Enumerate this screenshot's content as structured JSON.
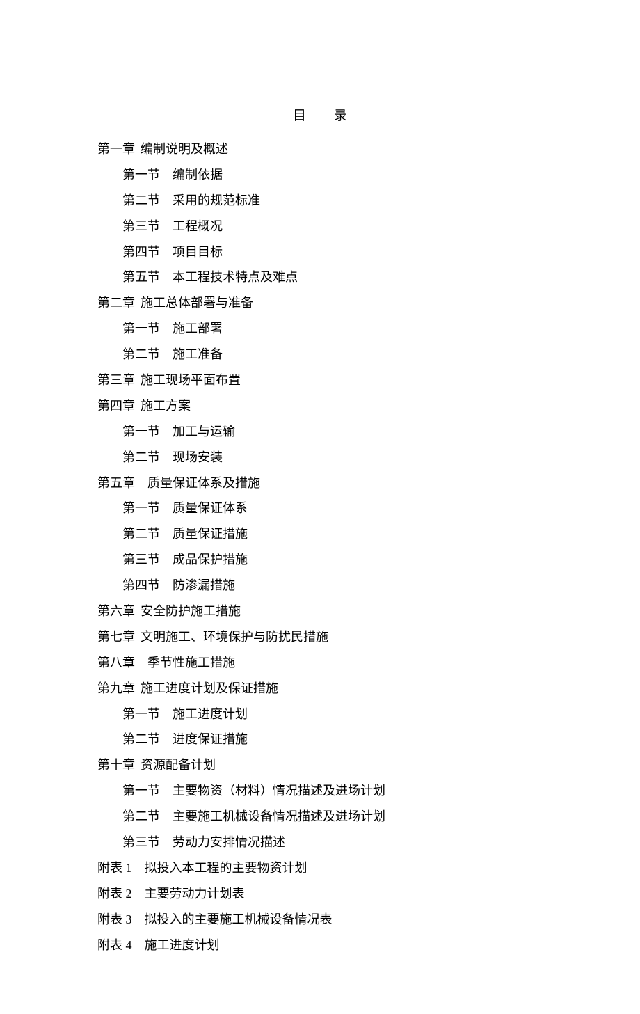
{
  "title": "目录",
  "toc": [
    {
      "level": "chapter",
      "prefix": "第一章",
      "sep": "narrow",
      "text": "编制说明及概述"
    },
    {
      "level": "section",
      "prefix": "第一节",
      "sep": "wide",
      "text": "编制依据"
    },
    {
      "level": "section",
      "prefix": "第二节",
      "sep": "wide",
      "text": "采用的规范标准"
    },
    {
      "level": "section",
      "prefix": "第三节",
      "sep": "wide",
      "text": "工程概况"
    },
    {
      "level": "section",
      "prefix": "第四节",
      "sep": "wide",
      "text": "项目目标"
    },
    {
      "level": "section",
      "prefix": "第五节",
      "sep": "wide",
      "text": "本工程技术特点及难点"
    },
    {
      "level": "chapter",
      "prefix": "第二章",
      "sep": "narrow",
      "text": "施工总体部署与准备"
    },
    {
      "level": "section",
      "prefix": "第一节",
      "sep": "wide",
      "text": "施工部署"
    },
    {
      "level": "section",
      "prefix": "第二节",
      "sep": "wide",
      "text": "施工准备"
    },
    {
      "level": "chapter",
      "prefix": "第三章",
      "sep": "narrow",
      "text": "施工现场平面布置"
    },
    {
      "level": "chapter",
      "prefix": "第四章",
      "sep": "narrow",
      "text": "施工方案"
    },
    {
      "level": "section",
      "prefix": "第一节",
      "sep": "wide",
      "text": "加工与运输"
    },
    {
      "level": "section",
      "prefix": "第二节",
      "sep": "wide",
      "text": "现场安装"
    },
    {
      "level": "chapter",
      "prefix": "第五章",
      "sep": "wide",
      "text": "质量保证体系及措施"
    },
    {
      "level": "section",
      "prefix": "第一节",
      "sep": "wide",
      "text": "质量保证体系"
    },
    {
      "level": "section",
      "prefix": "第二节",
      "sep": "wide",
      "text": "质量保证措施"
    },
    {
      "level": "section",
      "prefix": "第三节",
      "sep": "wide",
      "text": "成品保护措施"
    },
    {
      "level": "section",
      "prefix": "第四节",
      "sep": "wide",
      "text": "防渗漏措施"
    },
    {
      "level": "chapter",
      "prefix": "第六章",
      "sep": "narrow",
      "text": "安全防护施工措施"
    },
    {
      "level": "chapter",
      "prefix": "第七章",
      "sep": "narrow",
      "text": "文明施工、环境保护与防扰民措施"
    },
    {
      "level": "chapter",
      "prefix": "第八章",
      "sep": "wide",
      "text": "季节性施工措施"
    },
    {
      "level": "chapter",
      "prefix": "第九章",
      "sep": "narrow",
      "text": "施工进度计划及保证措施"
    },
    {
      "level": "section",
      "prefix": "第一节",
      "sep": "wide",
      "text": "施工进度计划"
    },
    {
      "level": "section",
      "prefix": "第二节",
      "sep": "wide",
      "text": "进度保证措施"
    },
    {
      "level": "chapter",
      "prefix": "第十章",
      "sep": "narrow",
      "text": "资源配备计划"
    },
    {
      "level": "section",
      "prefix": "第一节",
      "sep": "wide",
      "text": "主要物资（材料）情况描述及进场计划"
    },
    {
      "level": "section",
      "prefix": "第二节",
      "sep": "wide",
      "text": "主要施工机械设备情况描述及进场计划"
    },
    {
      "level": "section",
      "prefix": "第三节",
      "sep": "wide",
      "text": "劳动力安排情况描述"
    },
    {
      "level": "appendix",
      "prefix": "附表 1",
      "sep": "wide",
      "text": "拟投入本工程的主要物资计划"
    },
    {
      "level": "appendix",
      "prefix": "附表 2",
      "sep": "wide",
      "text": "主要劳动力计划表"
    },
    {
      "level": "appendix",
      "prefix": "附表 3",
      "sep": "wide",
      "text": "拟投入的主要施工机械设备情况表"
    },
    {
      "level": "appendix",
      "prefix": "附表 4",
      "sep": "wide",
      "text": "施工进度计划"
    }
  ]
}
